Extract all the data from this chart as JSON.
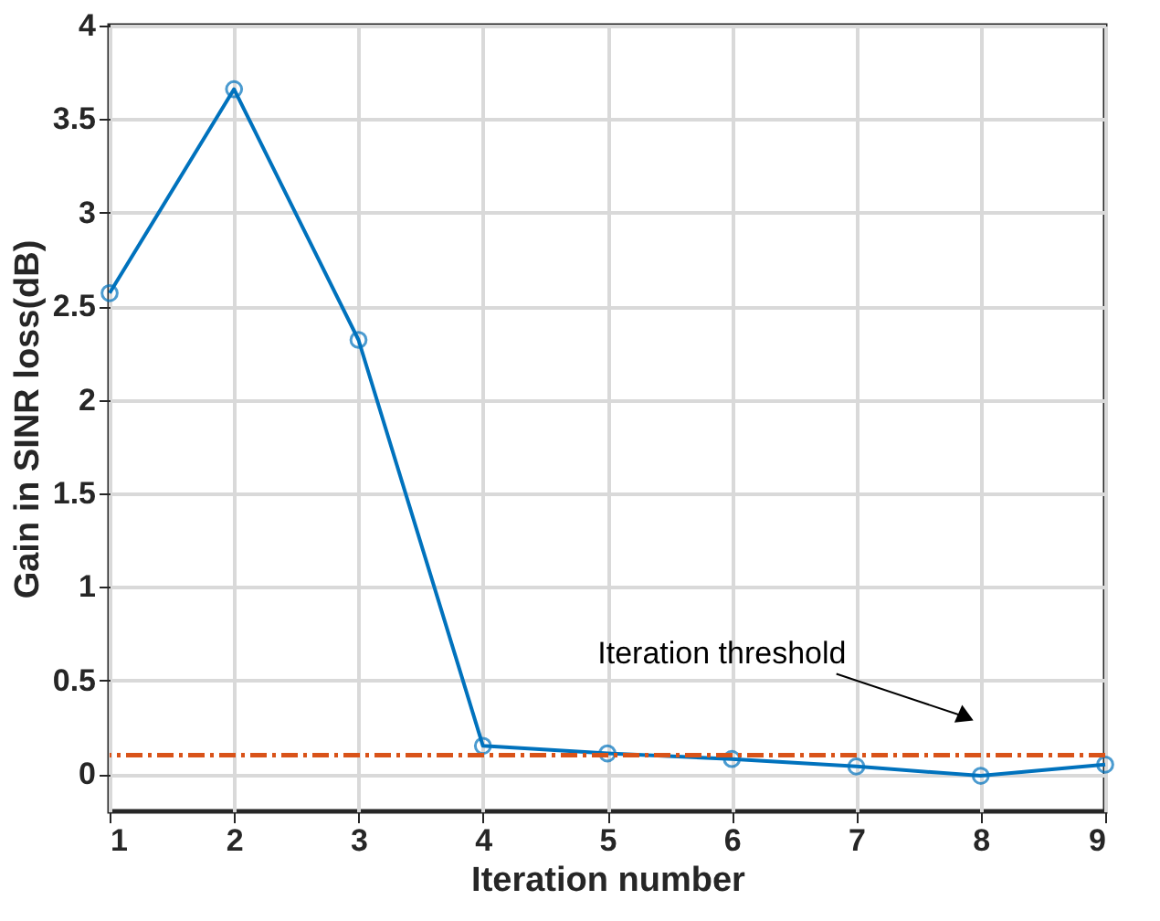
{
  "chart_data": {
    "type": "line",
    "xlabel": "Iteration number",
    "ylabel": "Gain in SINR loss(dB)",
    "x": [
      1,
      2,
      3,
      4,
      5,
      6,
      7,
      8,
      9
    ],
    "series": [
      {
        "color": "#0072bd",
        "values": [
          2.57,
          3.66,
          2.32,
          0.15,
          0.11,
          0.08,
          0.04,
          -0.01,
          0.05
        ]
      }
    ],
    "xlim": [
      1,
      9
    ],
    "xticks": [
      1,
      2,
      3,
      4,
      5,
      6,
      7,
      8,
      9
    ],
    "ylim": [
      -0.2,
      4
    ],
    "yticks": [
      0,
      0.5,
      1,
      1.5,
      2,
      2.5,
      3,
      3.5,
      4
    ],
    "ref_lines": [
      {
        "axis": "y",
        "value": 0.1,
        "label": "Iteration threshold",
        "color": "#d95319",
        "line_style": "dashdot"
      }
    ],
    "grid": true,
    "marker": "circle",
    "line_style": "solid"
  }
}
